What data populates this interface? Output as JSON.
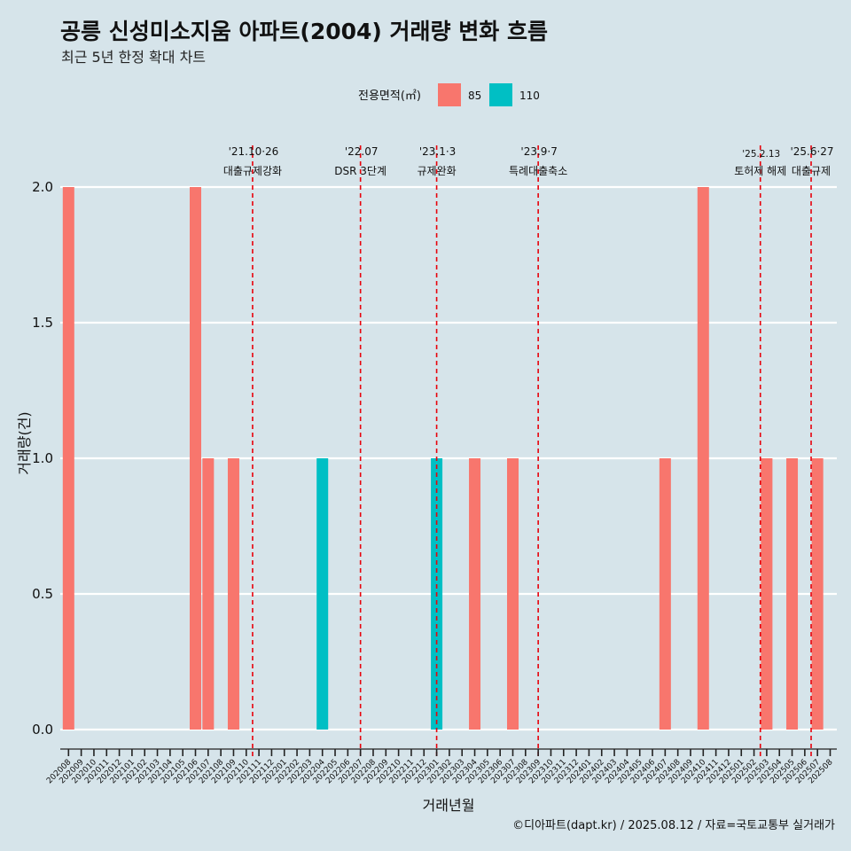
{
  "header": {
    "title": "공릉 신성미소지움 아파트(2004) 거래량 변화 흐름",
    "subtitle": "최근 5년 한정 확대 차트"
  },
  "legend": {
    "title": "전용면적(㎡)",
    "items": [
      {
        "label": "85",
        "color": "#f8766d"
      },
      {
        "label": "110",
        "color": "#00bfc4"
      }
    ]
  },
  "caption": "©디아파트(dapt.kr) / 2025.08.12 / 자료=국토교통부 실거래가",
  "chart_data": {
    "type": "bar",
    "title": "공릉 신성미소지움 아파트(2004) 거래량 변화 흐름",
    "subtitle": "최근 5년 한정 확대 차트",
    "xlabel": "거래년월",
    "ylabel": "거래량(건)",
    "ylim": [
      0,
      2
    ],
    "yticks": [
      "0.0",
      "0.5",
      "1.0",
      "1.5",
      "2.0"
    ],
    "grid": "horizontal",
    "legend_position": "top",
    "categories": [
      "202008",
      "202009",
      "202010",
      "202011",
      "202012",
      "202101",
      "202102",
      "202103",
      "202104",
      "202105",
      "202106",
      "202107",
      "202108",
      "202109",
      "202110",
      "202111",
      "202112",
      "202201",
      "202202",
      "202203",
      "202204",
      "202205",
      "202206",
      "202207",
      "202208",
      "202209",
      "202210",
      "202211",
      "202212",
      "202301",
      "202302",
      "202303",
      "202304",
      "202305",
      "202306",
      "202307",
      "202308",
      "202309",
      "202310",
      "202311",
      "202312",
      "202401",
      "202402",
      "202403",
      "202404",
      "202405",
      "202406",
      "202407",
      "202408",
      "202409",
      "202410",
      "202411",
      "202412",
      "202501",
      "202502",
      "202503",
      "202504",
      "202505",
      "202506",
      "202507",
      "202508"
    ],
    "series": [
      {
        "name": "85",
        "color": "#f8766d",
        "points": [
          {
            "x": "202008",
            "y": 2
          },
          {
            "x": "202106",
            "y": 2
          },
          {
            "x": "202107",
            "y": 1
          },
          {
            "x": "202109",
            "y": 1
          },
          {
            "x": "202304",
            "y": 1
          },
          {
            "x": "202307",
            "y": 1
          },
          {
            "x": "202407",
            "y": 1
          },
          {
            "x": "202410",
            "y": 2
          },
          {
            "x": "202503",
            "y": 1
          },
          {
            "x": "202505",
            "y": 1
          },
          {
            "x": "202507",
            "y": 1
          }
        ]
      },
      {
        "name": "110",
        "color": "#00bfc4",
        "points": [
          {
            "x": "202204",
            "y": 1
          },
          {
            "x": "202301",
            "y": 1
          }
        ]
      }
    ],
    "events": [
      {
        "date": "'21.10·26",
        "label": "대출규제강화",
        "at": "202110",
        "offset": 0.5
      },
      {
        "date": "'22.07",
        "label": "DSR 3단계",
        "at": "202207",
        "offset": 0
      },
      {
        "date": "'23.1·3",
        "label": "규제완화",
        "at": "202301",
        "offset": 0
      },
      {
        "date": "'23.9·7",
        "label": "특례대출축소",
        "at": "202309",
        "offset": 0
      },
      {
        "date": "'25.2.13",
        "label": "토허제 해제",
        "at": "202502",
        "offset": 0.5
      },
      {
        "date": "'25.6·27",
        "label": "대출규제",
        "at": "202506",
        "offset": 0.5
      }
    ],
    "event_line_color": "#e8000b"
  }
}
